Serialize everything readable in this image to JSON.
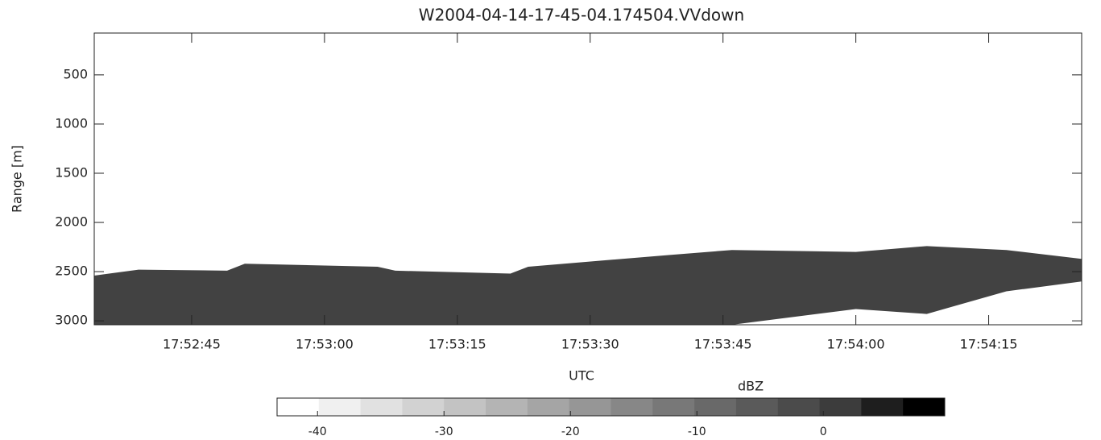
{
  "chart_data": {
    "type": "area",
    "title": "W2004-04-14-17-45-04.174504.VVdown",
    "x_label": "UTC",
    "y_label": "Range [m]",
    "xlim": [
      64354,
      64465.5
    ],
    "xticks": [
      {
        "value": 64365,
        "label": "17:52:45"
      },
      {
        "value": 64380,
        "label": "17:53:00"
      },
      {
        "value": 64395,
        "label": "17:53:15"
      },
      {
        "value": 64410,
        "label": "17:53:30"
      },
      {
        "value": 64425,
        "label": "17:53:45"
      },
      {
        "value": 64440,
        "label": "17:54:00"
      },
      {
        "value": 64455,
        "label": "17:54:15"
      }
    ],
    "ylim": [
      3040,
      75
    ],
    "yticks": [
      500,
      1000,
      1500,
      2000,
      2500,
      3000
    ],
    "layer": {
      "color": "#2e2e2e",
      "x": [
        64354,
        64359,
        64369,
        64371,
        64386,
        64388,
        64401,
        64403,
        64419,
        64426,
        64440,
        64448,
        64457,
        64465.5
      ],
      "top": [
        2540,
        2480,
        2490,
        2420,
        2450,
        2490,
        2520,
        2450,
        2330,
        2280,
        2300,
        2240,
        2280,
        2370
      ],
      "base": [
        3040,
        3040,
        3040,
        3040,
        3040,
        3040,
        3040,
        3040,
        3040,
        3040,
        2880,
        2930,
        2700,
        2600
      ]
    },
    "colorbar": {
      "label": "dBZ",
      "lim": [
        -43.2,
        9.6
      ],
      "ticks": [
        -40,
        -30,
        -20,
        -10,
        0
      ],
      "colors": [
        "#ffffff",
        "#f0f0f0",
        "#e1e1e1",
        "#d2d2d2",
        "#c3c3c3",
        "#b4b4b4",
        "#a5a5a5",
        "#969696",
        "#878787",
        "#787878",
        "#696969",
        "#5a5a5a",
        "#4b4b4b",
        "#3c3c3c",
        "#1e1e1e",
        "#000000"
      ]
    }
  }
}
